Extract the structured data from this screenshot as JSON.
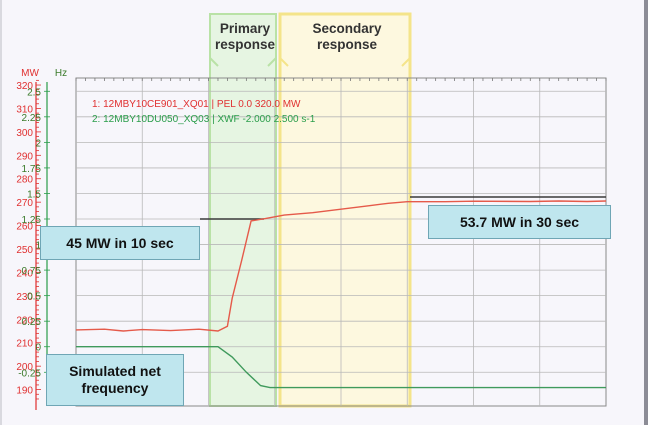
{
  "chart_data": {
    "type": "line",
    "phases": [
      "Primary\nresponse",
      "Secondary\nresponse"
    ],
    "y_left": {
      "label": "MW",
      "range": [
        183,
        323
      ],
      "ticks": [
        320,
        310,
        300,
        290,
        280,
        270,
        260,
        250,
        240,
        230,
        220,
        210,
        200,
        190
      ],
      "color": "#e03030"
    },
    "y_right": {
      "label": "Hz",
      "range": [
        -0.58,
        2.63
      ],
      "ticks": [
        "2.5",
        "2.25",
        "2",
        "1.75",
        "1.5",
        "1.25",
        "1",
        "0.75",
        "0.5",
        "0.25",
        "0",
        "-0.25"
      ],
      "color": "#2a9d4a"
    },
    "legend": [
      {
        "text": "1: 12MBY10CE901_XQ01 | PEL 0.0 320.0 MW",
        "color": "#e03030"
      },
      {
        "text": "2: 12MBY10DU050_XQ03 | XWF -2.000  2.500 s-1",
        "color": "#2a9d4a"
      }
    ],
    "series": [
      {
        "name": "1: 12MBY10CE901_XQ01 | PEL 0.0 320.0 MW",
        "color": "#e55a4a",
        "axis": "left",
        "x": [
          0,
          6,
          10,
          14,
          20,
          26,
          30,
          32,
          33,
          35,
          37,
          40,
          44,
          50,
          56,
          62,
          66,
          70,
          78,
          84,
          96,
          102,
          108,
          112
        ],
        "y": [
          215.5,
          215.8,
          215.0,
          215.6,
          215.2,
          215.8,
          215.0,
          217,
          229,
          245,
          262,
          263,
          264.5,
          265.5,
          267,
          268.5,
          269.5,
          270.2,
          270.2,
          270.4,
          270.3,
          270.5,
          270.3,
          270.5
        ]
      },
      {
        "name": "2: 12MBY10DU050_XQ03 | XWF -2.000  2.500 s-1",
        "color": "#3f9a5c",
        "axis": "right",
        "x": [
          0,
          24,
          30,
          33,
          36,
          39,
          41,
          112
        ],
        "y": [
          0.0,
          0.0,
          0.0,
          -0.1,
          -0.25,
          -0.38,
          -0.4,
          -0.4
        ]
      }
    ]
  },
  "annotations": {
    "c1": "45 MW in 10 sec",
    "c2": "53.7 MW in 30 sec",
    "c3": "Simulated net frequency"
  },
  "colors": {
    "primary_phase_fill": "#e6f5e2",
    "primary_phase_border": "#b9e2a6",
    "secondary_phase_fill": "#fdf8df",
    "secondary_phase_border": "#f4e48a",
    "callout_fill": "#bfe6ee",
    "callout_border": "#6fa6b5"
  }
}
